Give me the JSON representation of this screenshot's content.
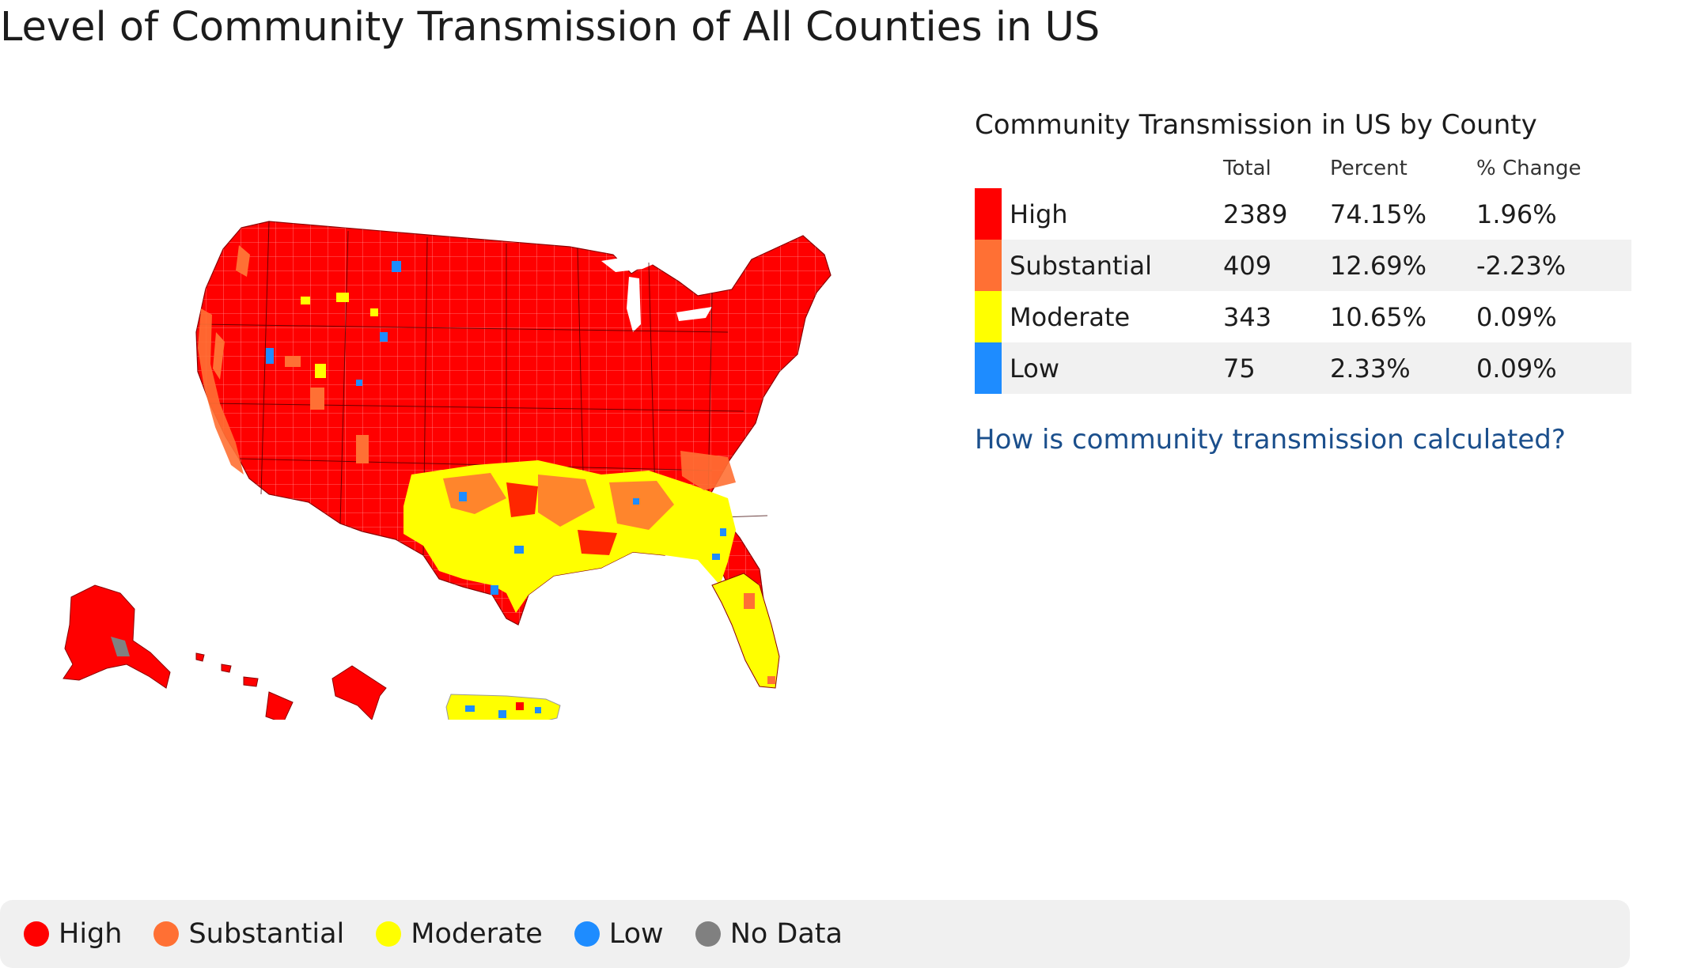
{
  "page": {
    "title": "Level of Community Transmission of All Counties in US"
  },
  "colors": {
    "high": "#ff0000",
    "substantial": "#ff7034",
    "moderate": "#ffff00",
    "low": "#1e8cff",
    "no_data": "#808080",
    "link": "#1b4f8c"
  },
  "summary": {
    "title": "Community Transmission in US by County",
    "headers": {
      "total": "Total",
      "percent": "Percent",
      "change": "% Change"
    },
    "rows": [
      {
        "label": "High",
        "total": "2389",
        "percent": "74.15%",
        "change": "1.96%"
      },
      {
        "label": "Substantial",
        "total": "409",
        "percent": "12.69%",
        "change": "-2.23%"
      },
      {
        "label": "Moderate",
        "total": "343",
        "percent": "10.65%",
        "change": "0.09%"
      },
      {
        "label": "Low",
        "total": "75",
        "percent": "2.33%",
        "change": "0.09%"
      }
    ],
    "link_text": "How is community transmission calculated?"
  },
  "legend": {
    "items": [
      {
        "label": "High"
      },
      {
        "label": "Substantial"
      },
      {
        "label": "Moderate"
      },
      {
        "label": "Low"
      },
      {
        "label": "No Data"
      }
    ]
  }
}
